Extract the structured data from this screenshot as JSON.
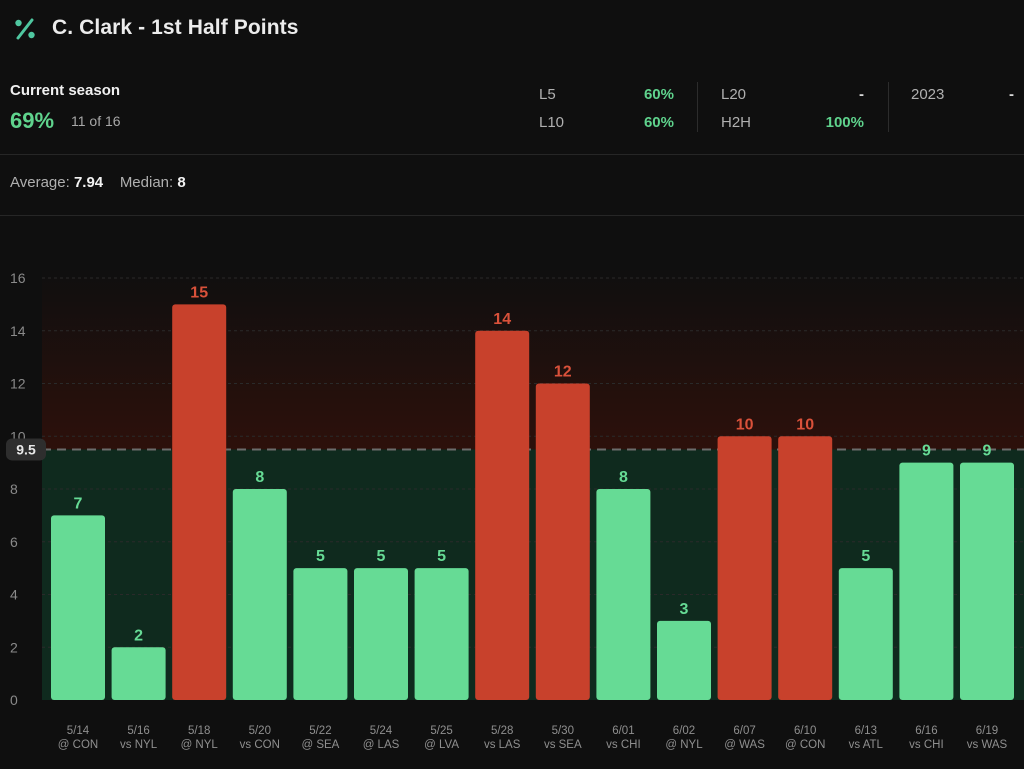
{
  "header": {
    "title": "C. Clark - 1st Half Points",
    "logo_icon": "percent-icon"
  },
  "season": {
    "label": "Current season",
    "pct": "69%",
    "count": "11 of 16",
    "stats": {
      "l5_label": "L5",
      "l5_value": "60%",
      "l10_label": "L10",
      "l10_value": "60%",
      "l20_label": "L20",
      "l20_value": "-",
      "h2h_label": "H2H",
      "h2h_value": "100%",
      "y2023_label": "2023",
      "y2023_value": "-"
    }
  },
  "summary": {
    "average_label": "Average:",
    "average_value": "7.94",
    "median_label": "Median:",
    "median_value": "8"
  },
  "colors": {
    "over": "#66db95",
    "under": "#c8412c",
    "over_zone": "#0f2a1e",
    "under_zone": "#2d100b",
    "line_label": "#66db95"
  },
  "chart_data": {
    "type": "bar",
    "title": "C. Clark - 1st Half Points",
    "ylim": [
      0,
      16
    ],
    "yticks": [
      0,
      2,
      4,
      6,
      8,
      10,
      12,
      14,
      16
    ],
    "line": 9.5,
    "line_label": "9.5",
    "dates": [
      "5/14",
      "5/16",
      "5/18",
      "5/20",
      "5/22",
      "5/24",
      "5/25",
      "5/28",
      "5/30",
      "6/01",
      "6/02",
      "6/07",
      "6/10",
      "6/13",
      "6/16",
      "6/19"
    ],
    "opponents": [
      "@ CON",
      "vs NYL",
      "@ NYL",
      "vs CON",
      "@ SEA",
      "@ LAS",
      "@ LVA",
      "vs LAS",
      "vs SEA",
      "vs CHI",
      "@ NYL",
      "@ WAS",
      "@ CON",
      "vs ATL",
      "vs CHI",
      "vs WAS"
    ],
    "values": [
      7,
      2,
      15,
      8,
      5,
      5,
      5,
      14,
      12,
      8,
      3,
      10,
      10,
      5,
      9,
      9
    ]
  }
}
